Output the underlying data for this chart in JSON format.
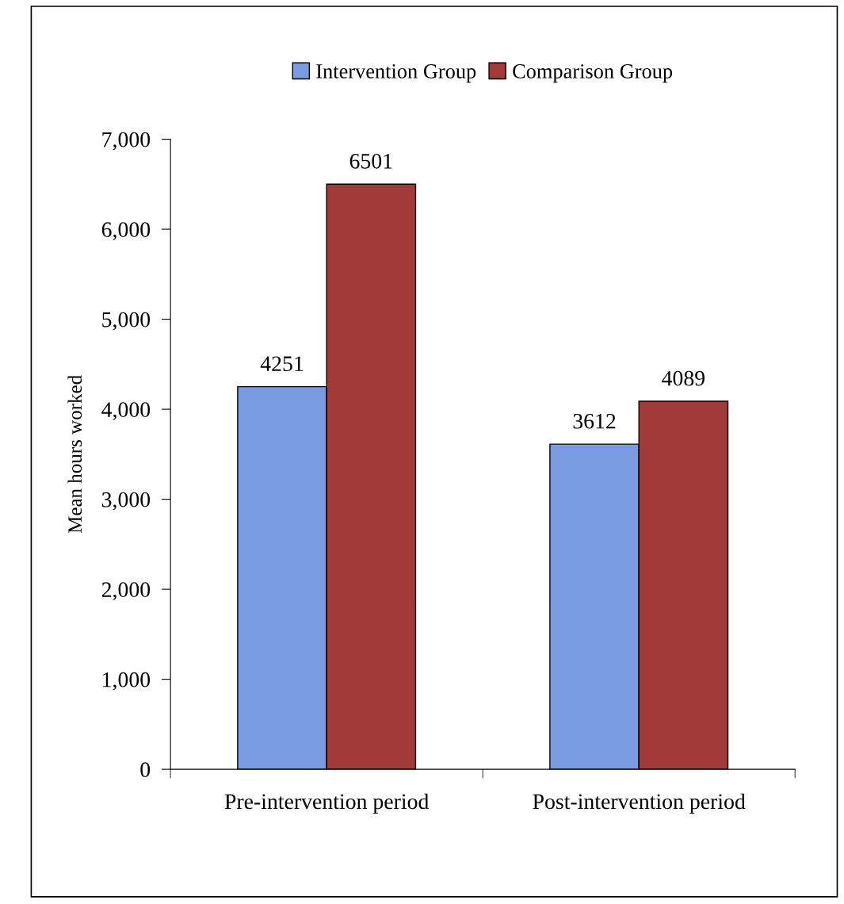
{
  "chart_data": {
    "type": "bar",
    "ylabel": "Mean hours worked",
    "categories": [
      "Pre-intervention period",
      "Post-intervention period"
    ],
    "series": [
      {
        "name": "Intervention Group",
        "color": "#7b9be0",
        "values": [
          4251,
          3612
        ]
      },
      {
        "name": "Comparison Group",
        "color": "#a33a3a",
        "values": [
          6501,
          4089
        ]
      }
    ],
    "ylim": [
      0,
      7000
    ],
    "yticks": [
      {
        "value": 0,
        "label": "0"
      },
      {
        "value": 1000,
        "label": "1,000"
      },
      {
        "value": 2000,
        "label": "2,000"
      },
      {
        "value": 3000,
        "label": "3,000"
      },
      {
        "value": 4000,
        "label": "4,000"
      },
      {
        "value": 5000,
        "label": "5,000"
      },
      {
        "value": 6000,
        "label": "6,000"
      },
      {
        "value": 7000,
        "label": "7,000"
      }
    ],
    "data_labels": true,
    "legend": "top",
    "grid": false
  }
}
